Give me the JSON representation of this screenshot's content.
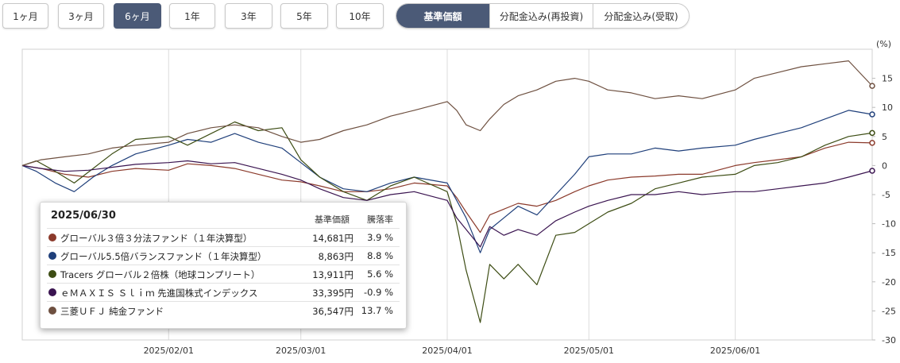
{
  "period_buttons": [
    {
      "label": "1ヶ月",
      "active": false
    },
    {
      "label": "3ヶ月",
      "active": false
    },
    {
      "label": "6ヶ月",
      "active": true
    },
    {
      "label": "1年",
      "active": false
    },
    {
      "label": "3年",
      "active": false
    },
    {
      "label": "5年",
      "active": false
    },
    {
      "label": "10年",
      "active": false
    }
  ],
  "mode_buttons": [
    {
      "label": "基準価額",
      "active": true
    },
    {
      "label": "分配金込み(再投資)",
      "active": false
    },
    {
      "label": "分配金込み(受取)",
      "active": false
    }
  ],
  "legend": {
    "date": "2025/06/30",
    "header_price": "基準価額",
    "header_rate": "騰落率",
    "rows": [
      {
        "name": "グローバル３倍３分法ファンド（１年決算型）",
        "price": "14,681円",
        "rate": "3.9 %",
        "color": "#8b3a2b"
      },
      {
        "name": "グローバル5.5倍バランスファンド（１年決算型）",
        "price": "8,863円",
        "rate": "8.8 %",
        "color": "#1f3f7a"
      },
      {
        "name": "Tracers グローバル２倍株（地球コンプリート）",
        "price": "13,911円",
        "rate": "5.6 %",
        "color": "#3d4d14"
      },
      {
        "name": "ｅＭＡＸＩＳ Ｓｌｉｍ 先進国株式インデックス",
        "price": "33,395円",
        "rate": "-0.9 %",
        "color": "#3a1450"
      },
      {
        "name": "三菱ＵＦＪ 純金ファンド",
        "price": "36,547円",
        "rate": "13.7 %",
        "color": "#6e5040"
      }
    ]
  },
  "chart_data": {
    "type": "line",
    "ylabel": "(%)",
    "ylim": [
      -30,
      20
    ],
    "yticks": [
      -30,
      -25,
      -20,
      -15,
      -10,
      -5,
      0,
      5,
      10,
      15
    ],
    "xlim": [
      "2025-01-01",
      "2025-06-30"
    ],
    "xticks": [
      {
        "date": "2025-02-01",
        "label": "2025/02/01"
      },
      {
        "date": "2025-03-01",
        "label": "2025/03/01"
      },
      {
        "date": "2025-04-01",
        "label": "2025/04/01"
      },
      {
        "date": "2025-05-01",
        "label": "2025/05/01"
      },
      {
        "date": "2025-06-01",
        "label": "2025/06/01"
      }
    ],
    "grid": {
      "vertical": true,
      "horizontal": false
    },
    "legend": "bottom-left",
    "series": [
      {
        "name": "グローバル３倍３分法ファンド（１年決算型）",
        "color": "#8b3a2b",
        "points": [
          [
            "2025-01-01",
            0
          ],
          [
            "2025-01-05",
            -0.5
          ],
          [
            "2025-01-10",
            -1.5
          ],
          [
            "2025-01-15",
            -2
          ],
          [
            "2025-01-20",
            -1
          ],
          [
            "2025-01-25",
            -0.5
          ],
          [
            "2025-02-01",
            -0.8
          ],
          [
            "2025-02-05",
            0.3
          ],
          [
            "2025-02-10",
            0
          ],
          [
            "2025-02-15",
            -0.5
          ],
          [
            "2025-02-20",
            -1.5
          ],
          [
            "2025-02-25",
            -2.5
          ],
          [
            "2025-03-01",
            -2.8
          ],
          [
            "2025-03-05",
            -3.5
          ],
          [
            "2025-03-10",
            -4.5
          ],
          [
            "2025-03-15",
            -4.5
          ],
          [
            "2025-03-20",
            -4
          ],
          [
            "2025-03-25",
            -3
          ],
          [
            "2025-04-01",
            -3.5
          ],
          [
            "2025-04-03",
            -5.5
          ],
          [
            "2025-04-05",
            -8
          ],
          [
            "2025-04-08",
            -11.5
          ],
          [
            "2025-04-10",
            -8.5
          ],
          [
            "2025-04-13",
            -7.5
          ],
          [
            "2025-04-16",
            -6.5
          ],
          [
            "2025-04-20",
            -7
          ],
          [
            "2025-04-24",
            -6
          ],
          [
            "2025-04-28",
            -4.5
          ],
          [
            "2025-05-01",
            -3.5
          ],
          [
            "2025-05-05",
            -2.5
          ],
          [
            "2025-05-10",
            -2
          ],
          [
            "2025-05-15",
            -1.8
          ],
          [
            "2025-05-20",
            -1.5
          ],
          [
            "2025-05-25",
            -1.5
          ],
          [
            "2025-06-01",
            0
          ],
          [
            "2025-06-05",
            0.5
          ],
          [
            "2025-06-10",
            1
          ],
          [
            "2025-06-15",
            1.5
          ],
          [
            "2025-06-20",
            3
          ],
          [
            "2025-06-25",
            4
          ],
          [
            "2025-06-30",
            3.9
          ]
        ]
      },
      {
        "name": "グローバル5.5倍バランスファンド（１年決算型）",
        "color": "#1f3f7a",
        "points": [
          [
            "2025-01-01",
            0
          ],
          [
            "2025-01-04",
            -1
          ],
          [
            "2025-01-08",
            -3
          ],
          [
            "2025-01-12",
            -4.5
          ],
          [
            "2025-01-16",
            -2
          ],
          [
            "2025-01-20",
            0
          ],
          [
            "2025-01-25",
            2
          ],
          [
            "2025-02-01",
            3.5
          ],
          [
            "2025-02-05",
            4.5
          ],
          [
            "2025-02-10",
            4
          ],
          [
            "2025-02-15",
            5.5
          ],
          [
            "2025-02-20",
            4
          ],
          [
            "2025-02-25",
            3
          ],
          [
            "2025-03-01",
            0.5
          ],
          [
            "2025-03-05",
            -2
          ],
          [
            "2025-03-10",
            -4
          ],
          [
            "2025-03-15",
            -4.5
          ],
          [
            "2025-03-20",
            -3
          ],
          [
            "2025-03-25",
            -2
          ],
          [
            "2025-04-01",
            -3
          ],
          [
            "2025-04-03",
            -6
          ],
          [
            "2025-04-05",
            -9
          ],
          [
            "2025-04-08",
            -15
          ],
          [
            "2025-04-10",
            -11
          ],
          [
            "2025-04-13",
            -9
          ],
          [
            "2025-04-16",
            -7
          ],
          [
            "2025-04-20",
            -8.5
          ],
          [
            "2025-04-24",
            -5
          ],
          [
            "2025-04-28",
            -1.5
          ],
          [
            "2025-05-01",
            1.5
          ],
          [
            "2025-05-05",
            2
          ],
          [
            "2025-05-10",
            2
          ],
          [
            "2025-05-15",
            3
          ],
          [
            "2025-05-20",
            2.5
          ],
          [
            "2025-05-25",
            3
          ],
          [
            "2025-06-01",
            3.5
          ],
          [
            "2025-06-05",
            4.5
          ],
          [
            "2025-06-10",
            5.5
          ],
          [
            "2025-06-15",
            6.5
          ],
          [
            "2025-06-20",
            8
          ],
          [
            "2025-06-25",
            9.5
          ],
          [
            "2025-06-30",
            8.8
          ]
        ]
      },
      {
        "name": "Tracers グローバル２倍株（地球コンプリート）",
        "color": "#3d4d14",
        "points": [
          [
            "2025-01-01",
            0
          ],
          [
            "2025-01-04",
            0.8
          ],
          [
            "2025-01-08",
            -1
          ],
          [
            "2025-01-12",
            -3
          ],
          [
            "2025-01-16",
            -0.5
          ],
          [
            "2025-01-20",
            2
          ],
          [
            "2025-01-25",
            4.5
          ],
          [
            "2025-02-01",
            5
          ],
          [
            "2025-02-05",
            3.5
          ],
          [
            "2025-02-10",
            5.5
          ],
          [
            "2025-02-15",
            7.5
          ],
          [
            "2025-02-20",
            6
          ],
          [
            "2025-02-25",
            6.5
          ],
          [
            "2025-03-01",
            1
          ],
          [
            "2025-03-05",
            -2
          ],
          [
            "2025-03-10",
            -4.5
          ],
          [
            "2025-03-15",
            -6
          ],
          [
            "2025-03-20",
            -3.5
          ],
          [
            "2025-03-25",
            -2
          ],
          [
            "2025-04-01",
            -4.5
          ],
          [
            "2025-04-03",
            -10
          ],
          [
            "2025-04-05",
            -18
          ],
          [
            "2025-04-08",
            -27
          ],
          [
            "2025-04-10",
            -17
          ],
          [
            "2025-04-13",
            -19.5
          ],
          [
            "2025-04-16",
            -17
          ],
          [
            "2025-04-20",
            -20.5
          ],
          [
            "2025-04-24",
            -12
          ],
          [
            "2025-04-28",
            -11.5
          ],
          [
            "2025-05-01",
            -10
          ],
          [
            "2025-05-05",
            -8
          ],
          [
            "2025-05-10",
            -6.5
          ],
          [
            "2025-05-15",
            -4
          ],
          [
            "2025-05-20",
            -3
          ],
          [
            "2025-05-25",
            -2
          ],
          [
            "2025-06-01",
            -1.5
          ],
          [
            "2025-06-05",
            0
          ],
          [
            "2025-06-10",
            0.5
          ],
          [
            "2025-06-15",
            1.5
          ],
          [
            "2025-06-20",
            3.5
          ],
          [
            "2025-06-25",
            5
          ],
          [
            "2025-06-30",
            5.6
          ]
        ]
      },
      {
        "name": "ｅＭＡＸＩＳ Ｓｌｉｍ 先進国株式インデックス",
        "color": "#3a1450",
        "points": [
          [
            "2025-01-01",
            0
          ],
          [
            "2025-01-05",
            -0.5
          ],
          [
            "2025-01-10",
            -1
          ],
          [
            "2025-01-15",
            -0.8
          ],
          [
            "2025-01-20",
            -0.3
          ],
          [
            "2025-01-25",
            0.2
          ],
          [
            "2025-02-01",
            0.5
          ],
          [
            "2025-02-05",
            0.8
          ],
          [
            "2025-02-10",
            0.3
          ],
          [
            "2025-02-15",
            0.5
          ],
          [
            "2025-02-20",
            -0.5
          ],
          [
            "2025-02-25",
            -1.5
          ],
          [
            "2025-03-01",
            -2.5
          ],
          [
            "2025-03-05",
            -4
          ],
          [
            "2025-03-10",
            -5.5
          ],
          [
            "2025-03-15",
            -6
          ],
          [
            "2025-03-20",
            -5
          ],
          [
            "2025-03-25",
            -4.5
          ],
          [
            "2025-04-01",
            -6
          ],
          [
            "2025-04-03",
            -9
          ],
          [
            "2025-04-05",
            -11
          ],
          [
            "2025-04-08",
            -14
          ],
          [
            "2025-04-10",
            -10.5
          ],
          [
            "2025-04-13",
            -12
          ],
          [
            "2025-04-16",
            -11
          ],
          [
            "2025-04-20",
            -12
          ],
          [
            "2025-04-24",
            -9.5
          ],
          [
            "2025-04-28",
            -8
          ],
          [
            "2025-05-01",
            -7
          ],
          [
            "2025-05-05",
            -6
          ],
          [
            "2025-05-10",
            -5
          ],
          [
            "2025-05-15",
            -5
          ],
          [
            "2025-05-20",
            -4.5
          ],
          [
            "2025-05-25",
            -5
          ],
          [
            "2025-06-01",
            -4.5
          ],
          [
            "2025-06-05",
            -4.5
          ],
          [
            "2025-06-10",
            -4
          ],
          [
            "2025-06-15",
            -3.5
          ],
          [
            "2025-06-20",
            -3
          ],
          [
            "2025-06-25",
            -2
          ],
          [
            "2025-06-30",
            -0.9
          ]
        ]
      },
      {
        "name": "三菱ＵＦＪ 純金ファンド",
        "color": "#6e5040",
        "points": [
          [
            "2025-01-01",
            0
          ],
          [
            "2025-01-05",
            1
          ],
          [
            "2025-01-10",
            1.5
          ],
          [
            "2025-01-15",
            2
          ],
          [
            "2025-01-20",
            3
          ],
          [
            "2025-01-25",
            3.5
          ],
          [
            "2025-02-01",
            4
          ],
          [
            "2025-02-05",
            5.5
          ],
          [
            "2025-02-10",
            6.5
          ],
          [
            "2025-02-15",
            7
          ],
          [
            "2025-02-20",
            6.5
          ],
          [
            "2025-02-25",
            5
          ],
          [
            "2025-03-01",
            4
          ],
          [
            "2025-03-05",
            4.5
          ],
          [
            "2025-03-10",
            6
          ],
          [
            "2025-03-15",
            7
          ],
          [
            "2025-03-20",
            8.5
          ],
          [
            "2025-03-25",
            9.5
          ],
          [
            "2025-04-01",
            11
          ],
          [
            "2025-04-03",
            9.5
          ],
          [
            "2025-04-05",
            7
          ],
          [
            "2025-04-08",
            6
          ],
          [
            "2025-04-10",
            8
          ],
          [
            "2025-04-13",
            10.5
          ],
          [
            "2025-04-16",
            12
          ],
          [
            "2025-04-20",
            13
          ],
          [
            "2025-04-24",
            14.5
          ],
          [
            "2025-04-28",
            15
          ],
          [
            "2025-05-01",
            14.5
          ],
          [
            "2025-05-05",
            13
          ],
          [
            "2025-05-10",
            12.5
          ],
          [
            "2025-05-15",
            11.5
          ],
          [
            "2025-05-20",
            12
          ],
          [
            "2025-05-25",
            11.5
          ],
          [
            "2025-06-01",
            13
          ],
          [
            "2025-06-05",
            15
          ],
          [
            "2025-06-10",
            16
          ],
          [
            "2025-06-15",
            17
          ],
          [
            "2025-06-20",
            17.5
          ],
          [
            "2025-06-25",
            18
          ],
          [
            "2025-06-30",
            13.7
          ]
        ]
      }
    ]
  }
}
